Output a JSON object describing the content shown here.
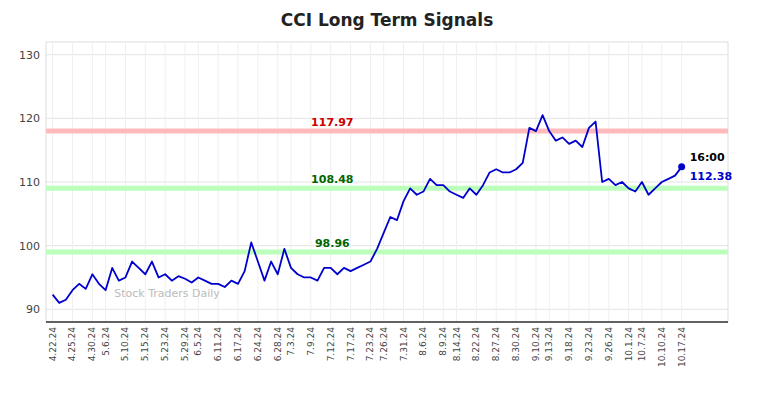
{
  "chart_data": {
    "type": "line",
    "title": "CCI Long Term Signals",
    "color": "#0000cc",
    "grid": true,
    "ylim": [
      88,
      132
    ],
    "yticks": [
      90,
      100,
      110,
      120,
      130
    ],
    "watermark": "Stock Traders Daily",
    "watermark_color": "#bbbbbb",
    "end_annotation": "16:00",
    "hlines": [
      {
        "y": 118.0,
        "color": "#ffbbbb",
        "label": "117.97",
        "label_color": "#cc0000"
      },
      {
        "y": 109.0,
        "color": "#bbffbb",
        "label": "108.48",
        "label_color": "#006600"
      },
      {
        "y": 99.0,
        "color": "#bbffbb",
        "label": "98.96",
        "label_color": "#006600"
      }
    ],
    "categories": [
      "4.22.24",
      null,
      null,
      "4.25.24",
      null,
      null,
      "4.30.24",
      null,
      "5.6.24",
      null,
      null,
      "5.10.24",
      null,
      null,
      "5.15.24",
      null,
      null,
      "5.23.24",
      null,
      null,
      "5.29.24",
      null,
      "6.5.24",
      null,
      null,
      "6.11.24",
      null,
      null,
      "6.17.24",
      null,
      null,
      "6.24.24",
      null,
      null,
      "6.28.24",
      null,
      "7.3.24",
      null,
      null,
      "7.9.24",
      null,
      null,
      "7.12.24",
      null,
      null,
      "7.17.24",
      null,
      null,
      "7.23.24",
      null,
      "7.26.24",
      null,
      null,
      "7.31.24",
      null,
      null,
      "8.6.24",
      null,
      null,
      "8.9.24",
      null,
      "8.14.24",
      null,
      null,
      "8.22.24",
      null,
      null,
      "8.27.24",
      null,
      null,
      "8.30.24",
      null,
      null,
      "9.10.24",
      null,
      "9.13.24",
      null,
      null,
      "9.18.24",
      null,
      null,
      "9.23.24",
      null,
      null,
      "9.26.24",
      null,
      null,
      "10.1.24",
      null,
      "10.7.24",
      null,
      null,
      "10.10.24",
      null,
      null,
      "10.17.24"
    ],
    "values": [
      92.3,
      91.0,
      91.5,
      93.0,
      94.0,
      93.2,
      95.5,
      94.0,
      93.0,
      96.5,
      94.5,
      95.0,
      97.5,
      96.5,
      95.5,
      97.5,
      95.0,
      95.5,
      94.5,
      95.2,
      94.8,
      94.2,
      95.0,
      94.5,
      94.0,
      94.0,
      93.5,
      94.5,
      94.0,
      96.0,
      100.5,
      97.5,
      94.5,
      97.5,
      95.5,
      99.5,
      96.5,
      95.5,
      95.0,
      95.0,
      94.5,
      96.5,
      96.5,
      95.5,
      96.5,
      96.0,
      96.5,
      97.0,
      97.5,
      99.5,
      102.0,
      104.5,
      104.0,
      107.0,
      109.0,
      108.0,
      108.5,
      110.5,
      109.5,
      109.5,
      108.5,
      108.0,
      107.5,
      109.0,
      108.0,
      109.5,
      111.5,
      112.0,
      111.5,
      111.5,
      112.0,
      113.0,
      118.5,
      118.0,
      120.5,
      118.0,
      116.5,
      117.0,
      116.0,
      116.5,
      115.5,
      118.5,
      119.5,
      110.0,
      110.5,
      109.5,
      110.0,
      109.0,
      108.5,
      110.0,
      108.0,
      109.0,
      110.0,
      110.5,
      111.0,
      112.38
    ]
  }
}
